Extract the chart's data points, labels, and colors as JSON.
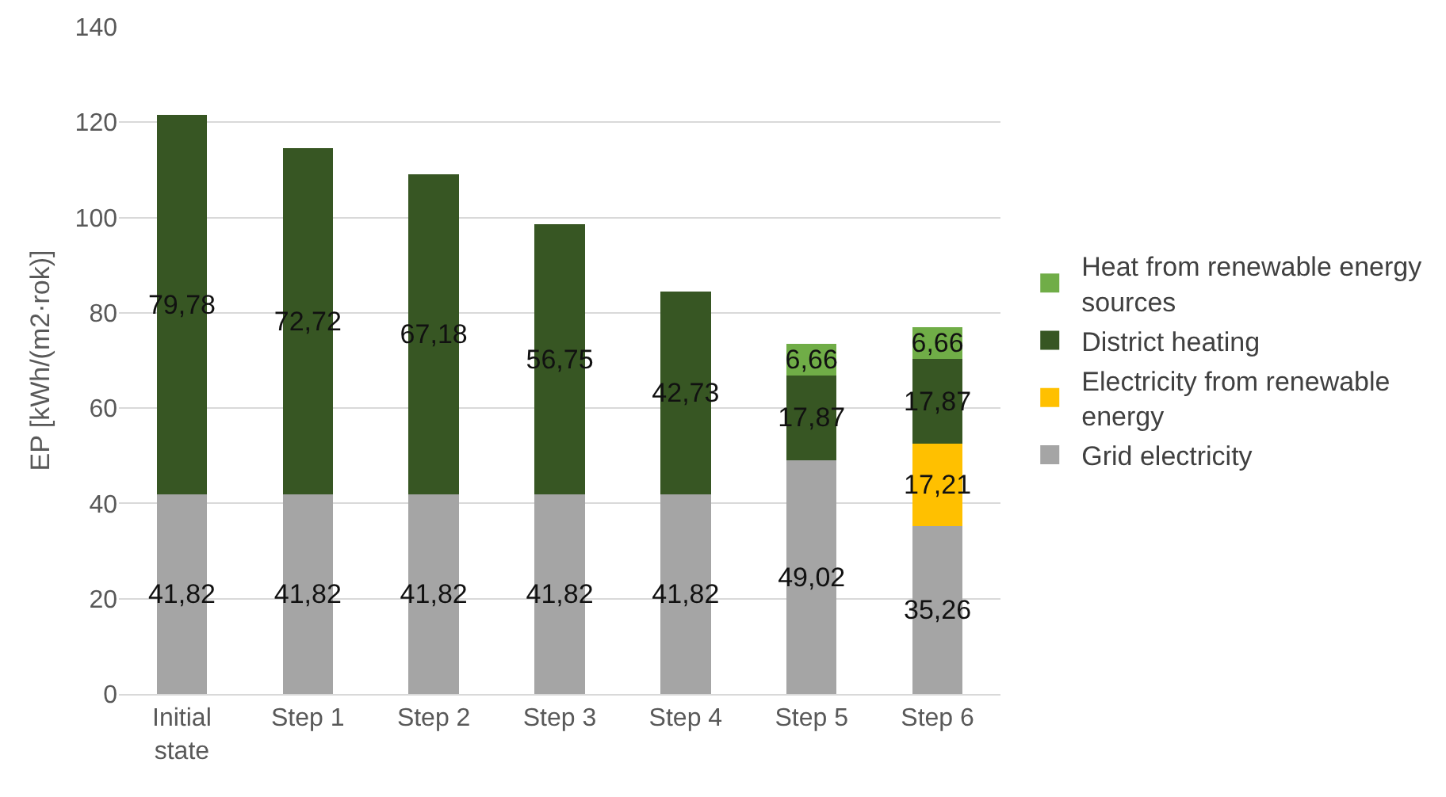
{
  "chart_data": {
    "type": "bar",
    "stacked": true,
    "ylabel": "EP [kWh/(m2·rok)]",
    "categories": [
      "Initial state",
      "Step 1",
      "Step 2",
      "Step 3",
      "Step 4",
      "Step 5",
      "Step 6"
    ],
    "series": [
      {
        "name": "Grid electricity",
        "color": "#a5a5a5",
        "values": [
          41.82,
          41.82,
          41.82,
          41.82,
          41.82,
          49.02,
          35.26
        ],
        "value_labels": [
          "41,82",
          "41,82",
          "41,82",
          "41,82",
          "41,82",
          "49,02",
          "35,26"
        ]
      },
      {
        "name": "Electricity from renewable energy",
        "color": "#ffc000",
        "values": [
          null,
          null,
          null,
          null,
          null,
          null,
          17.21
        ],
        "value_labels": [
          null,
          null,
          null,
          null,
          null,
          null,
          "17,21"
        ]
      },
      {
        "name": "District heating",
        "color": "#375623",
        "values": [
          79.78,
          72.72,
          67.18,
          56.75,
          42.73,
          17.87,
          17.87
        ],
        "value_labels": [
          "79,78",
          "72,72",
          "67,18",
          "56,75",
          "42,73",
          "17,87",
          "17,87"
        ]
      },
      {
        "name": "Heat from renewable energy sources",
        "color": "#70ad47",
        "values": [
          null,
          null,
          null,
          null,
          null,
          6.66,
          6.66
        ],
        "value_labels": [
          null,
          null,
          null,
          null,
          null,
          "6,66",
          "6,66"
        ]
      }
    ],
    "ylim": [
      0,
      140
    ],
    "yticks": [
      0,
      20,
      40,
      60,
      80,
      100,
      120,
      140
    ],
    "grid": "y",
    "legend": "right"
  }
}
